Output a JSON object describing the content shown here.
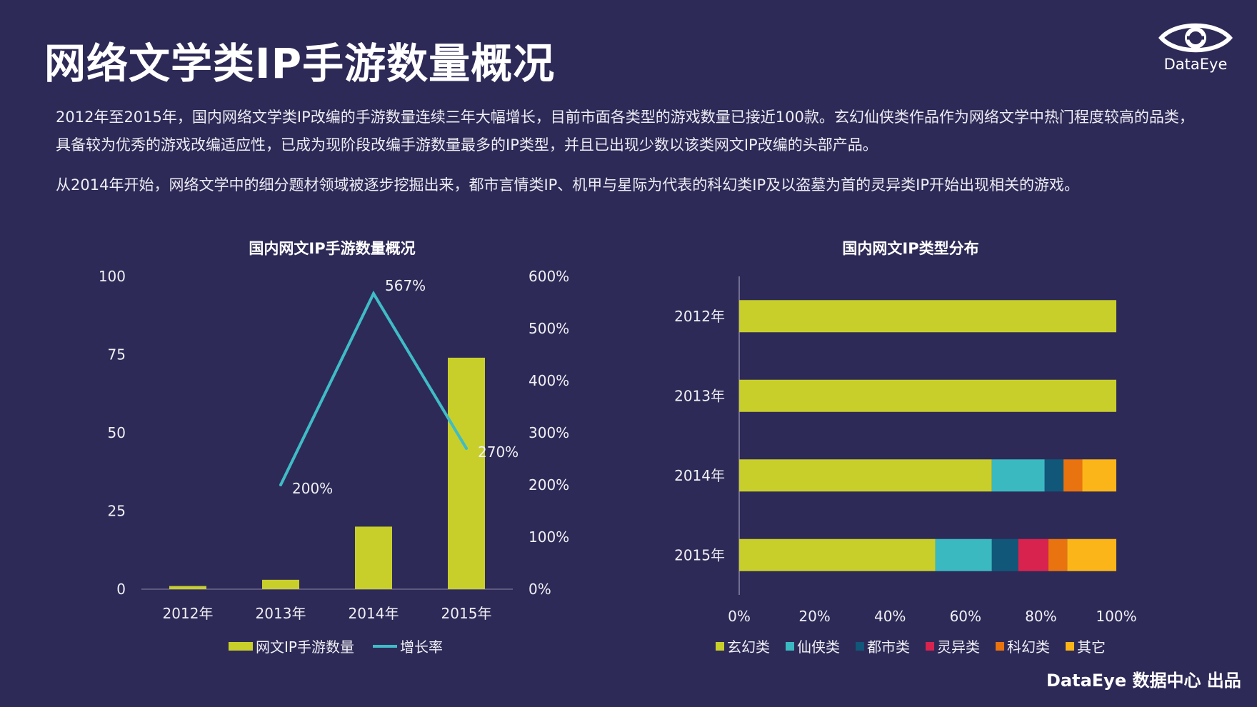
{
  "title": "网络文学类IP手游数量概况",
  "brand": {
    "name": "DataEye"
  },
  "paragraphs": [
    "2012年至2015年，国内网络文学类IP改编的手游数量连续三年大幅增长，目前市面各类型的游戏数量已接近100款。玄幻仙侠类作品作为网络文学中热门程度较高的品类，具备较为优秀的游戏改编适应性，已成为现阶段改编手游数量最多的IP类型，并且已出现少数以该类网文IP改编的头部产品。",
    "从2014年开始，网络文学中的细分题材领域被逐步挖掘出来，都市言情类IP、机甲与星际为代表的科幻类IP及以盗墓为首的灵异类IP开始出现相关的游戏。"
  ],
  "footer": "DataEye 数据中心 出品",
  "colors": {
    "background": "#2e2a57",
    "bar_yellow": "#c8cf2a",
    "line_teal": "#3fbcc6",
    "cat_xuanhuan": "#c8cf2a",
    "cat_xianxia": "#3bb9c1",
    "cat_dushi": "#10577a",
    "cat_lingyi": "#d8234f",
    "cat_kehuan": "#e9730f",
    "cat_other": "#fbb518"
  },
  "chart_data": [
    {
      "type": "bar",
      "title": "国内网文IP手游数量概况",
      "categories": [
        "2012年",
        "2013年",
        "2014年",
        "2015年"
      ],
      "series": [
        {
          "name": "网文IP手游数量",
          "type": "bar",
          "values": [
            1,
            3,
            20,
            74
          ]
        },
        {
          "name": "增长率",
          "type": "line",
          "axis": "right",
          "values": [
            null,
            200,
            567,
            270
          ],
          "labels": [
            null,
            "200%",
            "567%",
            "270%"
          ]
        }
      ],
      "ylim": [
        0,
        100
      ],
      "yticks": [
        "0",
        "25",
        "50",
        "75",
        "100"
      ],
      "y2lim": [
        0,
        600
      ],
      "y2ticks": [
        "0%",
        "100%",
        "200%",
        "300%",
        "400%",
        "500%",
        "600%"
      ],
      "legend": "bottom"
    },
    {
      "type": "bar",
      "orientation": "horizontal",
      "stacked": "percent",
      "title": "国内网文IP类型分布",
      "categories": [
        "2012年",
        "2013年",
        "2014年",
        "2015年"
      ],
      "series": [
        {
          "name": "玄幻类",
          "values": [
            100,
            100,
            67,
            52
          ]
        },
        {
          "name": "仙侠类",
          "values": [
            0,
            0,
            14,
            15
          ]
        },
        {
          "name": "都市类",
          "values": [
            0,
            0,
            5,
            7
          ]
        },
        {
          "name": "灵异类",
          "values": [
            0,
            0,
            0,
            8
          ]
        },
        {
          "name": "科幻类",
          "values": [
            0,
            0,
            5,
            5
          ]
        },
        {
          "name": "其它",
          "values": [
            0,
            0,
            9,
            13
          ]
        }
      ],
      "xlim": [
        0,
        100
      ],
      "xticks": [
        "0%",
        "20%",
        "40%",
        "60%",
        "80%",
        "100%"
      ],
      "legend": "bottom"
    }
  ]
}
